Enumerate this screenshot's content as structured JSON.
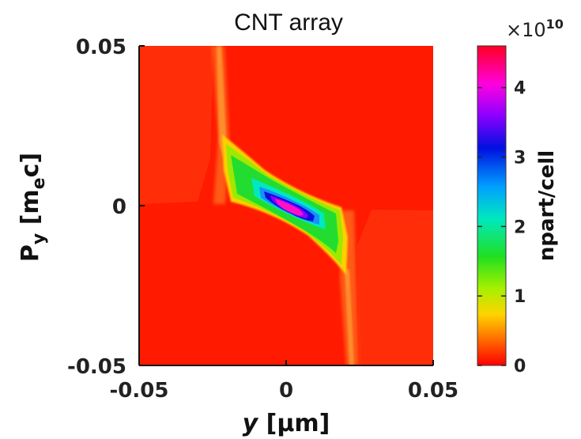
{
  "chart_data": {
    "type": "heatmap",
    "title": "CNT array",
    "xlabel_var": "y",
    "xlabel_unit": " [μm]",
    "ylabel_var": "P",
    "ylabel_sub": "y",
    "ylabel_unit_pre": " [m",
    "ylabel_unit_sub": "e",
    "ylabel_unit_post": "c]",
    "xlim": [
      -0.05,
      0.05
    ],
    "ylim": [
      -0.05,
      0.05
    ],
    "x_ticks": [
      "-0.05",
      "0",
      "0.05"
    ],
    "y_ticks": [
      "0.05",
      "0",
      "-0.05"
    ],
    "colorbar": {
      "label": "npart/cell",
      "exponent_prefix": "×10",
      "exponent": "10",
      "ticks": [
        "4",
        "3",
        "2",
        "1",
        "0"
      ],
      "range": [
        0,
        4.6
      ],
      "colormap": "red-yellow-green-cyan-blue-magenta-red"
    },
    "colors": {
      "background": "#ff1a00",
      "band": "#ff4a12",
      "band_edge": "#ff8a30",
      "axis": "#111111"
    },
    "features": {
      "s_curve": "localized electron population concentrated near y=0, P_y=0 with peak ~4.4e10 npart/cell",
      "vertical_bands": "two faint vertical streaks near y=-0.022 and y=+0.022 um"
    }
  }
}
